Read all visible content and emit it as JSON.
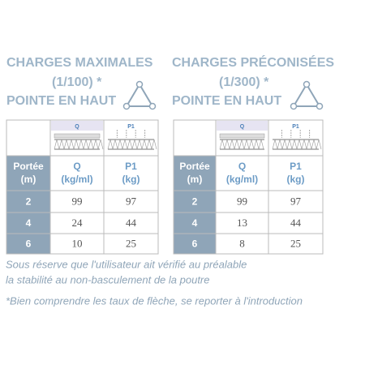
{
  "tables": [
    {
      "title": [
        "CHARGES MAXIMALES",
        "(1/100) *",
        "POINTE EN HAUT"
      ],
      "diagram_labels": [
        "Q",
        "P1"
      ],
      "header": [
        [
          "Portée",
          "(m)"
        ],
        [
          "Q",
          "(kg/ml)"
        ],
        [
          "P1",
          "(kg)"
        ]
      ],
      "rows": [
        [
          2,
          99,
          97
        ],
        [
          4,
          24,
          44
        ],
        [
          6,
          10,
          25
        ]
      ]
    },
    {
      "title": [
        "CHARGES PRÉCONISÉES",
        "(1/300) *",
        "POINTE EN HAUT"
      ],
      "diagram_labels": [
        "Q",
        "P1"
      ],
      "header": [
        [
          "Portée",
          "(m)"
        ],
        [
          "Q",
          "(kg/ml)"
        ],
        [
          "P1",
          "(kg)"
        ]
      ],
      "rows": [
        [
          2,
          99,
          97
        ],
        [
          4,
          13,
          44
        ],
        [
          6,
          8,
          25
        ]
      ]
    }
  ],
  "notes": [
    "Sous réserve que l'utilisateur ait vérifié au préalable",
    "la stabilité au non-basculement de la poutre",
    "*Bien comprendre les taux de flèche, se reporter à l'introduction"
  ]
}
